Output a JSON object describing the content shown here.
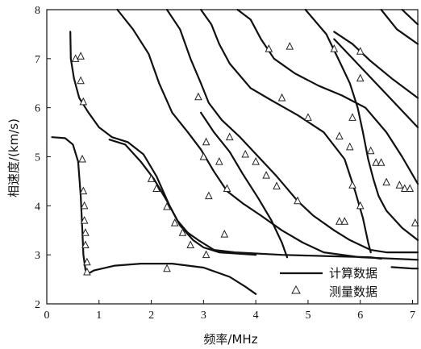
{
  "chart_data": {
    "type": "line",
    "xlabel": "频率/MHz",
    "ylabel": "相速度/(km/s)",
    "xlim": [
      0,
      7.1
    ],
    "ylim": [
      2,
      8
    ],
    "xticks": [
      0,
      1,
      2,
      3,
      4,
      5,
      6,
      7
    ],
    "yticks": [
      2,
      3,
      4,
      5,
      6,
      7,
      8
    ],
    "grid": false,
    "legend_position": "bottom-right",
    "legend": {
      "computed_label": "计算数据",
      "measured_label": "测量数据"
    },
    "series": [
      {
        "name": "计算数据",
        "kind": "curves",
        "curves": [
          [
            [
              0.1,
              5.4
            ],
            [
              0.35,
              5.38
            ],
            [
              0.5,
              5.25
            ],
            [
              0.6,
              4.9
            ],
            [
              0.65,
              4.2
            ],
            [
              0.68,
              3.5
            ],
            [
              0.7,
              3.0
            ],
            [
              0.74,
              2.7
            ],
            [
              0.8,
              2.62
            ],
            [
              0.9,
              2.68
            ]
          ],
          [
            [
              0.9,
              2.68
            ],
            [
              1.3,
              2.78
            ],
            [
              1.8,
              2.82
            ],
            [
              2.4,
              2.82
            ],
            [
              3.0,
              2.74
            ],
            [
              3.5,
              2.55
            ],
            [
              3.8,
              2.35
            ],
            [
              4.0,
              2.2
            ]
          ],
          [
            [
              0.45,
              7.55
            ],
            [
              0.46,
              7.0
            ],
            [
              0.52,
              6.6
            ],
            [
              0.62,
              6.2
            ],
            [
              0.8,
              5.9
            ],
            [
              1.0,
              5.6
            ],
            [
              1.25,
              5.4
            ],
            [
              1.55,
              5.3
            ],
            [
              1.85,
              5.05
            ],
            [
              2.1,
              4.6
            ],
            [
              2.35,
              4.0
            ],
            [
              2.55,
              3.6
            ],
            [
              2.8,
              3.3
            ],
            [
              3.0,
              3.15
            ],
            [
              3.3,
              3.05
            ],
            [
              4.0,
              3.0
            ]
          ],
          [
            [
              1.2,
              5.35
            ],
            [
              1.5,
              5.25
            ],
            [
              1.8,
              4.9
            ],
            [
              2.05,
              4.55
            ],
            [
              2.3,
              4.1
            ],
            [
              2.5,
              3.7
            ],
            [
              2.7,
              3.45
            ],
            [
              2.9,
              3.3
            ],
            [
              3.2,
              3.1
            ],
            [
              3.6,
              3.05
            ],
            [
              4.5,
              3.0
            ],
            [
              5.5,
              2.97
            ],
            [
              6.2,
              2.95
            ],
            [
              6.4,
              2.92
            ]
          ],
          [
            [
              1.35,
              8.0
            ],
            [
              1.65,
              7.6
            ],
            [
              1.95,
              7.1
            ],
            [
              2.15,
              6.5
            ],
            [
              2.4,
              5.9
            ],
            [
              2.7,
              5.5
            ],
            [
              2.95,
              5.15
            ],
            [
              3.2,
              4.7
            ],
            [
              3.45,
              4.3
            ],
            [
              3.75,
              4.05
            ],
            [
              4.1,
              3.8
            ],
            [
              4.5,
              3.5
            ],
            [
              4.9,
              3.25
            ],
            [
              5.3,
              3.05
            ],
            [
              6.0,
              2.95
            ],
            [
              7.1,
              2.9
            ]
          ],
          [
            [
              2.3,
              8.0
            ],
            [
              2.55,
              7.6
            ],
            [
              2.75,
              7.0
            ],
            [
              2.95,
              6.5
            ],
            [
              3.1,
              6.1
            ],
            [
              3.35,
              5.75
            ],
            [
              3.7,
              5.4
            ],
            [
              4.05,
              5.0
            ],
            [
              4.4,
              4.6
            ],
            [
              4.8,
              4.1
            ],
            [
              5.1,
              3.8
            ],
            [
              5.5,
              3.5
            ],
            [
              5.8,
              3.3
            ],
            [
              6.0,
              3.2
            ],
            [
              6.2,
              3.1
            ],
            [
              6.5,
              3.05
            ],
            [
              7.1,
              3.05
            ]
          ],
          [
            [
              2.95,
              5.9
            ],
            [
              3.2,
              5.5
            ],
            [
              3.5,
              5.1
            ],
            [
              3.75,
              4.65
            ],
            [
              4.05,
              4.15
            ],
            [
              4.3,
              3.7
            ],
            [
              4.5,
              3.25
            ],
            [
              4.6,
              2.95
            ]
          ],
          [
            [
              2.95,
              8.0
            ],
            [
              3.15,
              7.7
            ],
            [
              3.3,
              7.3
            ],
            [
              3.5,
              6.9
            ],
            [
              3.9,
              6.4
            ],
            [
              4.3,
              6.15
            ],
            [
              4.8,
              5.85
            ],
            [
              5.3,
              5.5
            ],
            [
              5.7,
              4.95
            ],
            [
              5.9,
              4.3
            ],
            [
              6.05,
              3.75
            ],
            [
              6.15,
              3.25
            ],
            [
              6.2,
              3.05
            ]
          ],
          [
            [
              3.65,
              8.0
            ],
            [
              3.9,
              7.8
            ],
            [
              4.1,
              7.4
            ],
            [
              4.35,
              7.0
            ],
            [
              4.75,
              6.7
            ],
            [
              5.2,
              6.45
            ],
            [
              5.65,
              6.25
            ],
            [
              6.1,
              6.0
            ],
            [
              6.5,
              5.5
            ],
            [
              6.8,
              5.0
            ],
            [
              7.1,
              4.45
            ]
          ],
          [
            [
              4.95,
              8.0
            ],
            [
              5.35,
              7.5
            ],
            [
              5.6,
              6.95
            ],
            [
              5.8,
              6.5
            ],
            [
              5.95,
              6.0
            ],
            [
              6.05,
              5.5
            ],
            [
              6.15,
              4.95
            ],
            [
              6.25,
              4.55
            ],
            [
              6.35,
              4.2
            ],
            [
              6.5,
              3.9
            ],
            [
              6.8,
              3.55
            ],
            [
              7.1,
              3.3
            ]
          ],
          [
            [
              5.5,
              7.55
            ],
            [
              5.85,
              7.3
            ],
            [
              6.2,
              6.95
            ],
            [
              6.6,
              6.6
            ],
            [
              7.1,
              6.2
            ]
          ],
          [
            [
              5.5,
              7.4
            ],
            [
              5.9,
              6.95
            ],
            [
              6.3,
              6.5
            ],
            [
              6.7,
              6.05
            ],
            [
              7.1,
              5.6
            ]
          ],
          [
            [
              6.4,
              8.0
            ],
            [
              6.7,
              7.6
            ],
            [
              7.1,
              7.3
            ]
          ],
          [
            [
              6.8,
              8.0
            ],
            [
              7.1,
              7.7
            ]
          ],
          [
            [
              6.6,
              2.75
            ],
            [
              7.0,
              2.72
            ],
            [
              7.1,
              2.72
            ]
          ]
        ]
      },
      {
        "name": "测量数据",
        "kind": "points",
        "points": [
          [
            0.55,
            7.0
          ],
          [
            0.65,
            7.05
          ],
          [
            0.65,
            6.55
          ],
          [
            0.7,
            6.12
          ],
          [
            0.68,
            4.95
          ],
          [
            0.7,
            4.3
          ],
          [
            0.72,
            4.0
          ],
          [
            0.72,
            3.7
          ],
          [
            0.74,
            3.45
          ],
          [
            0.74,
            3.2
          ],
          [
            0.77,
            2.85
          ],
          [
            0.77,
            2.65
          ],
          [
            2.0,
            4.55
          ],
          [
            2.1,
            4.35
          ],
          [
            2.3,
            3.98
          ],
          [
            2.45,
            3.65
          ],
          [
            2.6,
            3.45
          ],
          [
            2.75,
            3.2
          ],
          [
            2.3,
            2.72
          ],
          [
            3.05,
            3.0
          ],
          [
            2.9,
            6.22
          ],
          [
            3.05,
            5.3
          ],
          [
            3.0,
            5.0
          ],
          [
            3.1,
            4.2
          ],
          [
            3.3,
            4.9
          ],
          [
            3.5,
            5.4
          ],
          [
            3.45,
            4.35
          ],
          [
            3.4,
            3.42
          ],
          [
            3.8,
            5.05
          ],
          [
            4.0,
            4.9
          ],
          [
            4.2,
            4.62
          ],
          [
            4.4,
            4.4
          ],
          [
            4.8,
            4.1
          ],
          [
            4.5,
            6.2
          ],
          [
            4.25,
            7.2
          ],
          [
            4.65,
            7.25
          ],
          [
            5.0,
            5.8
          ],
          [
            5.5,
            7.2
          ],
          [
            5.6,
            5.42
          ],
          [
            5.8,
            5.2
          ],
          [
            5.6,
            3.68
          ],
          [
            5.7,
            3.68
          ],
          [
            5.85,
            4.42
          ],
          [
            5.85,
            5.8
          ],
          [
            6.0,
            7.15
          ],
          [
            6.0,
            6.6
          ],
          [
            6.0,
            4.0
          ],
          [
            6.2,
            5.12
          ],
          [
            6.3,
            4.88
          ],
          [
            6.4,
            4.88
          ],
          [
            6.5,
            4.48
          ],
          [
            6.75,
            4.42
          ],
          [
            6.85,
            4.35
          ],
          [
            6.95,
            4.35
          ],
          [
            7.05,
            3.65
          ]
        ]
      }
    ]
  }
}
